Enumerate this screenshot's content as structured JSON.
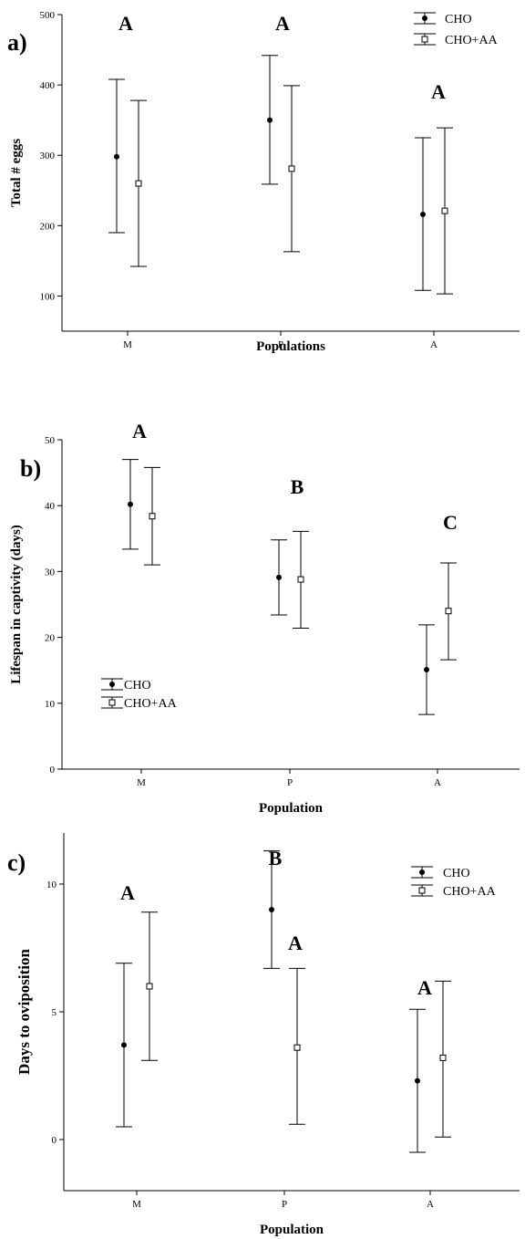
{
  "chart_data": [
    {
      "type": "scatter",
      "panel_label": "a)",
      "xlabel": "Populations",
      "ylabel": "Total # eggs",
      "categories": [
        "M",
        "P",
        "A"
      ],
      "ylim": [
        50,
        500
      ],
      "yticks": [
        100,
        200,
        300,
        400,
        500
      ],
      "series": [
        {
          "name": "CHO",
          "marker": "filled-circle",
          "values": [
            298,
            350,
            216
          ],
          "lower": [
            190,
            259,
            108
          ],
          "upper": [
            408,
            442,
            325
          ]
        },
        {
          "name": "CHO+AA",
          "marker": "open-square",
          "values": [
            260,
            281,
            221
          ],
          "lower": [
            142,
            163,
            103
          ],
          "upper": [
            378,
            399,
            339
          ]
        }
      ],
      "significance_letters": [
        "A",
        "A",
        "A"
      ],
      "legend_position": "top-right",
      "grid": false
    },
    {
      "type": "scatter",
      "panel_label": "b)",
      "xlabel": "Population",
      "ylabel": "Lifespan in captivity (days)",
      "categories": [
        "M",
        "P",
        "A"
      ],
      "ylim": [
        0,
        50
      ],
      "yticks": [
        0,
        10,
        20,
        30,
        40,
        50
      ],
      "series": [
        {
          "name": "CHO",
          "marker": "filled-circle",
          "values": [
            40.2,
            29.1,
            15.1
          ],
          "lower": [
            33.4,
            23.4,
            8.3
          ],
          "upper": [
            47.0,
            34.8,
            21.9
          ]
        },
        {
          "name": "CHO+AA",
          "marker": "open-square",
          "values": [
            38.4,
            28.8,
            24.0
          ],
          "lower": [
            31.0,
            21.4,
            16.6
          ],
          "upper": [
            45.8,
            36.1,
            31.3
          ]
        }
      ],
      "significance_letters": [
        "A",
        "B",
        "C"
      ],
      "legend_position": "bottom-left",
      "grid": false
    },
    {
      "type": "scatter",
      "panel_label": "c)",
      "xlabel": "Population",
      "ylabel": "Days to oviposition",
      "categories": [
        "M",
        "P",
        "A"
      ],
      "ylim": [
        -2,
        12
      ],
      "yticks": [
        0,
        5,
        10
      ],
      "series": [
        {
          "name": "CHO",
          "marker": "filled-circle",
          "values": [
            3.7,
            9.0,
            2.3
          ],
          "lower": [
            0.5,
            6.7,
            -0.5
          ],
          "upper": [
            6.9,
            11.3,
            5.1
          ]
        },
        {
          "name": "CHO+AA",
          "marker": "open-square",
          "values": [
            6.0,
            3.6,
            3.2
          ],
          "lower": [
            3.1,
            0.6,
            0.1
          ],
          "upper": [
            8.9,
            6.7,
            6.2
          ]
        }
      ],
      "significance_letters": [
        {
          "category": "M",
          "series": "both",
          "letter": "A"
        },
        {
          "category": "P",
          "series": "CHO",
          "letter": "B"
        },
        {
          "category": "P",
          "series": "CHO+AA",
          "letter": "A"
        },
        {
          "category": "A",
          "series": "both",
          "letter": "A"
        }
      ],
      "legend_position": "top-right",
      "grid": false
    }
  ]
}
